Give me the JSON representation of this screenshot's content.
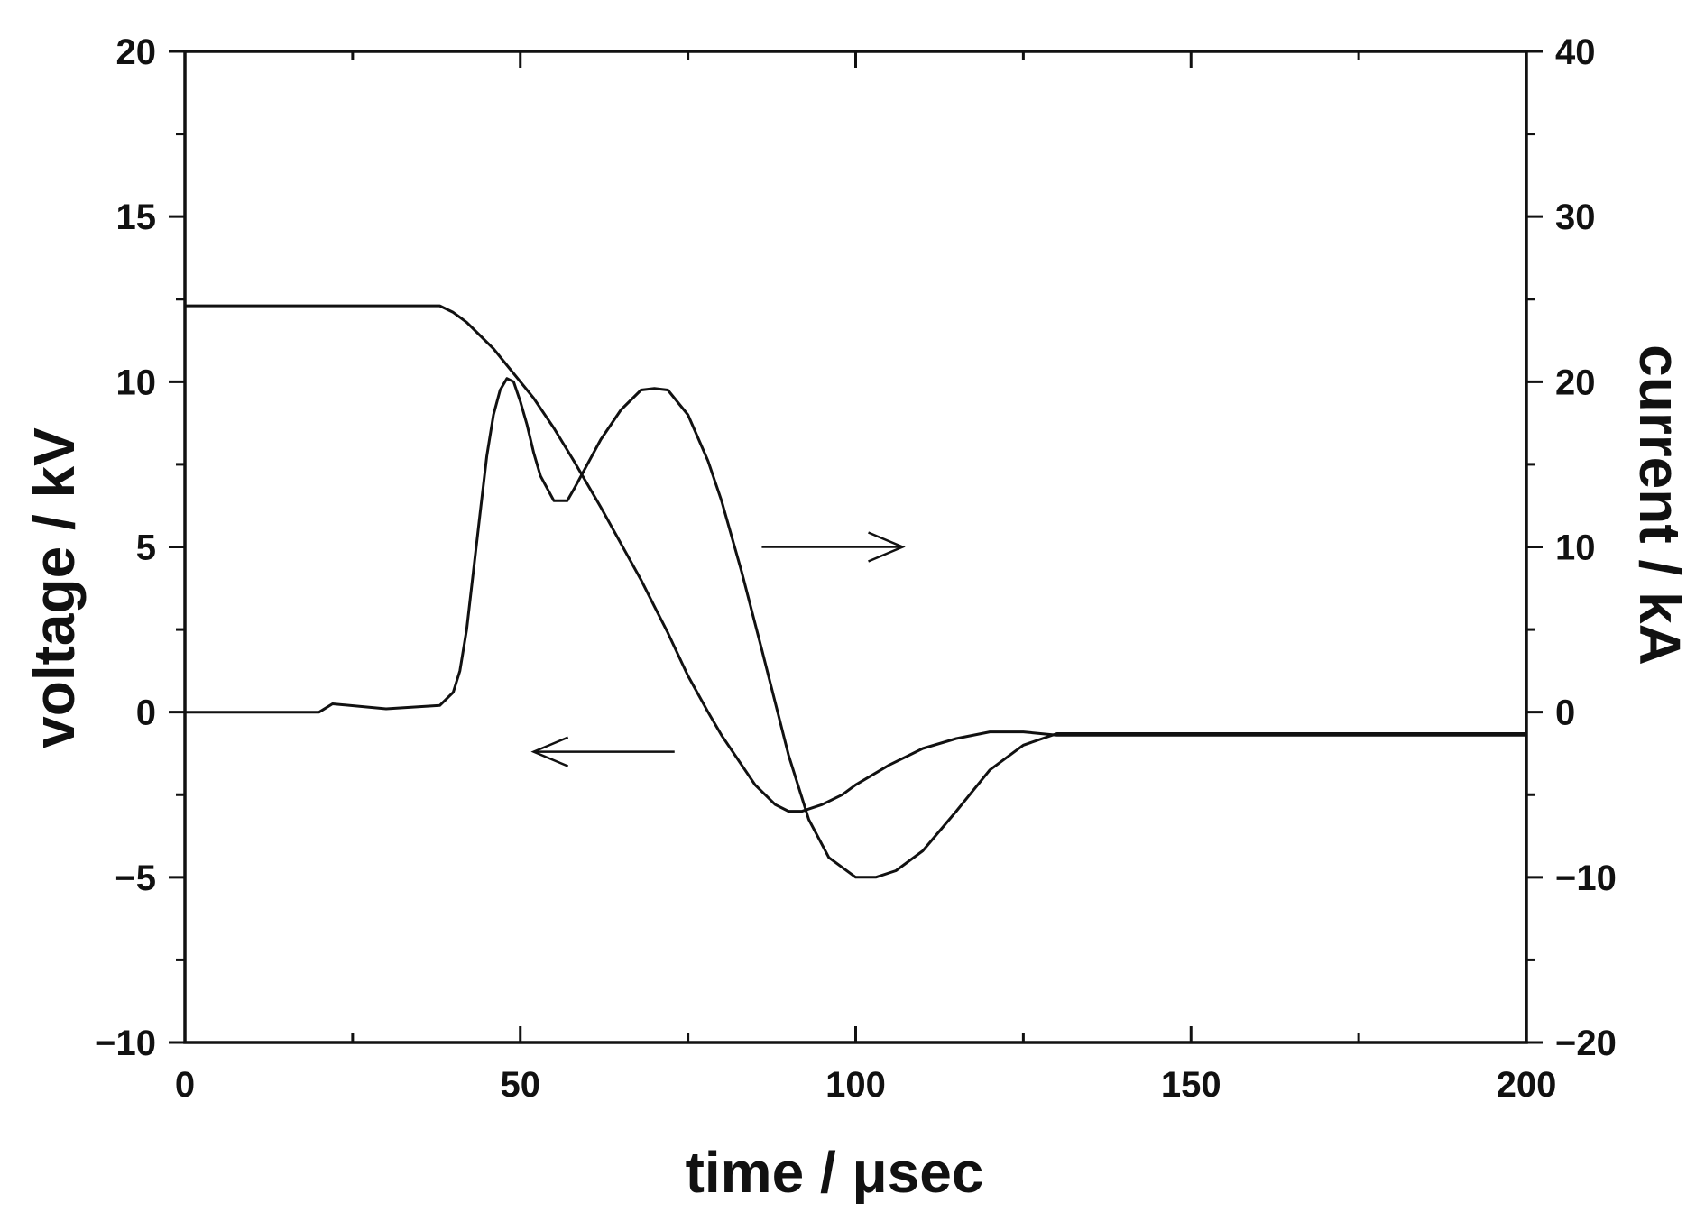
{
  "chart_data": {
    "type": "line",
    "xlabel": "time / μsec",
    "ylabel_left": "voltage / kV",
    "ylabel_right": "current / kA",
    "xlim": [
      0,
      200
    ],
    "ylim_left": [
      -10,
      20
    ],
    "ylim_right": [
      -20,
      40
    ],
    "x_ticks": [
      "0",
      "50",
      "100",
      "150",
      "200"
    ],
    "y_left_ticks": [
      "−10",
      "−5",
      "0",
      "5",
      "10",
      "15",
      "20"
    ],
    "y_right_ticks": [
      "−20",
      "−10",
      "0",
      "10",
      "20",
      "30",
      "40"
    ],
    "grid": false,
    "series": [
      {
        "axis": "left",
        "x": [
          0,
          10,
          20,
          30,
          38,
          40,
          42,
          44,
          46,
          48,
          50,
          52,
          55,
          58,
          60,
          62,
          65,
          68,
          70,
          72,
          75,
          78,
          80,
          82,
          85,
          88,
          90,
          92,
          95,
          98,
          100,
          105,
          110,
          115,
          120,
          125,
          130,
          140,
          150,
          160,
          170,
          180,
          190,
          200
        ],
        "y": [
          12.3,
          12.3,
          12.3,
          12.3,
          12.3,
          12.1,
          11.8,
          11.4,
          11.0,
          10.5,
          10.0,
          9.5,
          8.6,
          7.6,
          6.9,
          6.2,
          5.1,
          4.0,
          3.2,
          2.4,
          1.1,
          0.0,
          -0.7,
          -1.3,
          -2.2,
          -2.8,
          -3.0,
          -3.0,
          -2.8,
          -2.5,
          -2.2,
          -1.6,
          -1.1,
          -0.8,
          -0.6,
          -0.6,
          -0.7,
          -0.7,
          -0.7,
          -0.7,
          -0.7,
          -0.7,
          -0.7,
          -0.7
        ]
      },
      {
        "axis": "right",
        "x": [
          0,
          10,
          20,
          22,
          30,
          38,
          40,
          41,
          42,
          43,
          44,
          45,
          46,
          47,
          48,
          49,
          50,
          51,
          52,
          53,
          55,
          57,
          58,
          60,
          62,
          65,
          68,
          70,
          72,
          75,
          78,
          80,
          83,
          86,
          90,
          93,
          96,
          100,
          103,
          106,
          110,
          115,
          120,
          125,
          130,
          140,
          150,
          160,
          170,
          180,
          190,
          200
        ],
        "y": [
          0,
          0,
          0,
          0.5,
          0.2,
          0.4,
          1.2,
          2.5,
          5,
          8.5,
          12,
          15.5,
          18,
          19.5,
          20.2,
          20,
          18.8,
          17.4,
          15.7,
          14.3,
          12.8,
          12.8,
          13.5,
          15,
          16.5,
          18.3,
          19.5,
          19.6,
          19.5,
          18,
          15.2,
          12.8,
          8.5,
          3.8,
          -2.6,
          -6.5,
          -8.8,
          -10,
          -10,
          -9.6,
          -8.4,
          -6,
          -3.5,
          -2.0,
          -1.3,
          -1.3,
          -1.3,
          -1.3,
          -1.3,
          -1.3,
          -1.3,
          -1.3
        ]
      }
    ],
    "annotations": [
      {
        "type": "arrow",
        "direction": "left",
        "target_axis": "left",
        "from": [
          73,
          -1.2
        ],
        "to": [
          52,
          -1.2
        ]
      },
      {
        "type": "arrow",
        "direction": "right",
        "target_axis": "right",
        "from": [
          86,
          10
        ],
        "to": [
          107,
          10
        ]
      }
    ]
  }
}
